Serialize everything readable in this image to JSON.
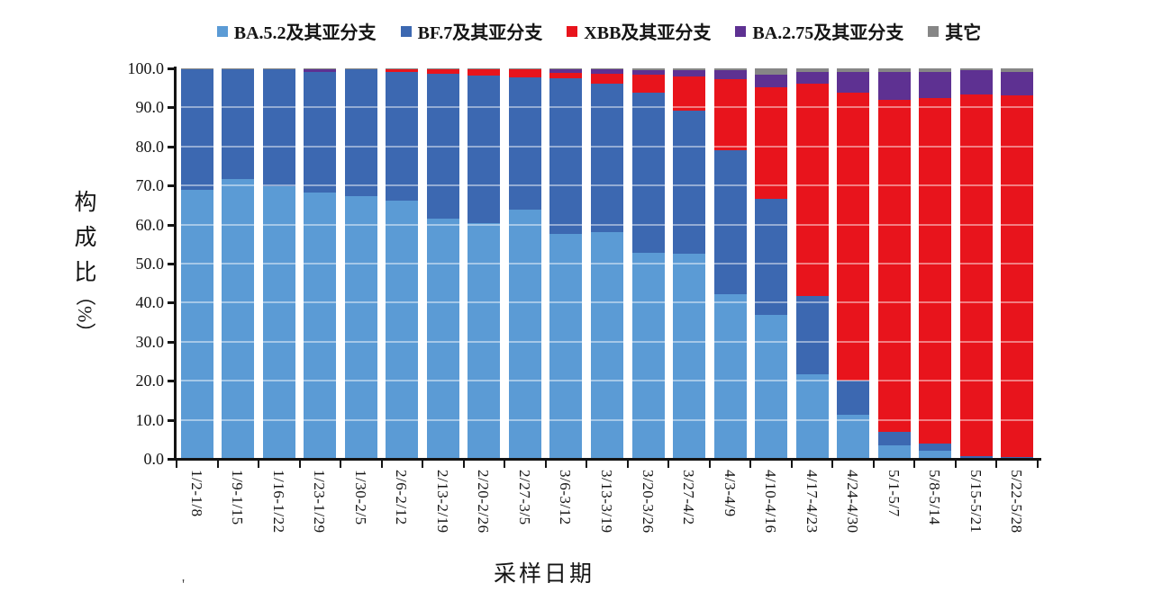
{
  "y_axis": {
    "title": "构成比",
    "unit": "（%）",
    "min": 0,
    "max": 100,
    "step": 10,
    "tick_labels": [
      "0.0",
      "10.0",
      "20.0",
      "30.0",
      "40.0",
      "50.0",
      "60.0",
      "70.0",
      "80.0",
      "90.0",
      "100.0"
    ]
  },
  "x_axis": {
    "title": "采样日期"
  },
  "footnote": {
    "mark": "'"
  },
  "chart_data": {
    "type": "bar",
    "stacked": true,
    "title": "",
    "xlabel": "采样日期",
    "ylabel": "构成比（%）",
    "ylim": [
      0,
      100
    ],
    "legend_position": "top",
    "grid": "white horizontal gridlines overlaid on bars at 10% intervals",
    "categories": [
      "1/2-1/8",
      "1/9-1/15",
      "1/16-1/22",
      "1/23-1/29",
      "1/30-2/5",
      "2/6-2/12",
      "2/13-2/19",
      "2/20-2/26",
      "2/27-3/5",
      "3/6-3/12",
      "3/13-3/19",
      "3/20-3/26",
      "3/27-4/2",
      "4/3-4/9",
      "4/10-4/16",
      "4/17-4/23",
      "4/24-4/30",
      "5/1-5/7",
      "5/8-5/14",
      "5/15-5/21",
      "5/22-5/28"
    ],
    "series": [
      {
        "name": "BA.5.2及其亚分支",
        "color": "#5B9BD5",
        "values": [
          69.0,
          71.6,
          69.8,
          68.1,
          67.3,
          66.1,
          61.5,
          60.3,
          63.8,
          57.6,
          58.0,
          52.8,
          52.5,
          42.1,
          36.8,
          21.6,
          11.2,
          3.5,
          2.0,
          0.3,
          0.2
        ]
      },
      {
        "name": "BF.7及其亚分支",
        "color": "#3C68B1",
        "values": [
          30.7,
          28.1,
          29.9,
          30.9,
          32.4,
          32.9,
          37.2,
          37.9,
          34.0,
          39.8,
          38.2,
          40.9,
          36.6,
          37.0,
          29.9,
          20.1,
          8.9,
          3.5,
          2.0,
          0.5,
          0.3
        ]
      },
      {
        "name": "XBB及其亚分支",
        "color": "#E8141C",
        "values": [
          0.0,
          0.0,
          0.0,
          0.0,
          0.0,
          0.7,
          1.0,
          1.5,
          1.9,
          1.5,
          2.5,
          4.6,
          8.9,
          18.1,
          28.4,
          54.3,
          73.6,
          84.9,
          88.5,
          92.6,
          92.7
        ]
      },
      {
        "name": "BA.2.75及其亚分支",
        "color": "#5E3192",
        "values": [
          0.0,
          0.0,
          0.0,
          0.7,
          0.0,
          0.0,
          0.0,
          0.0,
          0.0,
          0.8,
          1.0,
          1.2,
          1.5,
          2.3,
          3.2,
          3.0,
          5.3,
          7.1,
          6.5,
          6.1,
          5.8
        ]
      },
      {
        "name": "其它",
        "color": "#868686",
        "values": [
          0.3,
          0.3,
          0.3,
          0.3,
          0.3,
          0.3,
          0.3,
          0.3,
          0.3,
          0.3,
          0.3,
          0.5,
          0.5,
          0.5,
          1.7,
          1.0,
          1.0,
          1.0,
          1.0,
          0.5,
          1.0
        ]
      }
    ]
  }
}
